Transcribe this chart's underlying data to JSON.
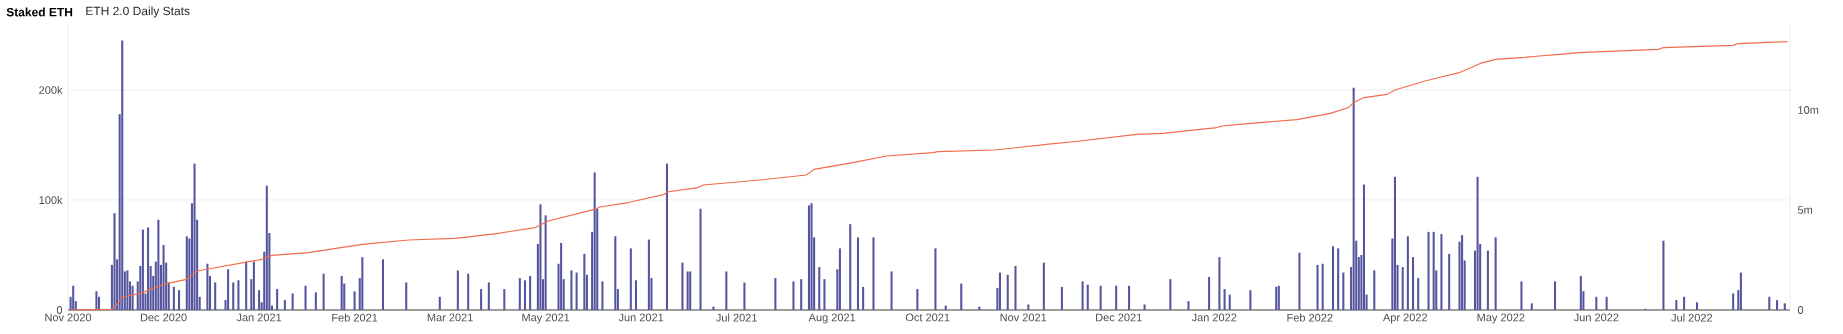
{
  "chart_data": {
    "type": "bar",
    "title": "Staked ETH",
    "subtitle": "ETH 2.0 Daily Stats",
    "xlim": [
      "2020-11-02",
      "2022-08-31"
    ],
    "xticks": [
      {
        "value": "2020-11-02",
        "label": "Nov 2020"
      },
      {
        "value": "2020-12-09",
        "label": "Dec 2020"
      },
      {
        "value": "2021-01-15",
        "label": "Jan 2021"
      },
      {
        "value": "2021-02-21",
        "label": "Feb 2021"
      },
      {
        "value": "2021-03-30",
        "label": "Mar 2021"
      },
      {
        "value": "2021-05-06",
        "label": "May 2021"
      },
      {
        "value": "2021-06-12",
        "label": "Jun 2021"
      },
      {
        "value": "2021-07-19",
        "label": "Jul 2021"
      },
      {
        "value": "2021-08-25",
        "label": "Aug 2021"
      },
      {
        "value": "2021-10-01",
        "label": "Oct 2021"
      },
      {
        "value": "2021-11-07",
        "label": "Nov 2021"
      },
      {
        "value": "2021-12-14",
        "label": "Dec 2021"
      },
      {
        "value": "2022-01-20",
        "label": "Jan 2022"
      },
      {
        "value": "2022-02-26",
        "label": "Feb 2022"
      },
      {
        "value": "2022-04-04",
        "label": "Apr 2022"
      },
      {
        "value": "2022-05-11",
        "label": "May 2022"
      },
      {
        "value": "2022-06-17",
        "label": "Jun 2022"
      },
      {
        "value": "2022-07-24",
        "label": "Jul 2022"
      }
    ],
    "ylim": [
      0,
      259000
    ],
    "yticks": [
      0,
      {
        "value": 100000,
        "label": "100k"
      },
      {
        "value": 200000,
        "label": "200k"
      }
    ],
    "y2lim": [
      0,
      14250000
    ],
    "y2ticks": [
      0,
      {
        "value": 5000000,
        "label": "5m"
      },
      {
        "value": 10000000,
        "label": "10m"
      }
    ],
    "grid": "y",
    "series": [
      {
        "color": "#55559f",
        "x": [
          "2020-11-03",
          "2020-11-04",
          "2020-11-05",
          "2020-11-13",
          "2020-11-14",
          "2020-11-19",
          "2020-11-20",
          "2020-11-21",
          "2020-11-22",
          "2020-11-23",
          "2020-11-24",
          "2020-11-25",
          "2020-11-26",
          "2020-11-27",
          "2020-11-29",
          "2020-11-30",
          "2020-12-01",
          "2020-12-02",
          "2020-12-03",
          "2020-12-04",
          "2020-12-05",
          "2020-12-06",
          "2020-12-07",
          "2020-12-08",
          "2020-12-09",
          "2020-12-10",
          "2020-12-11",
          "2020-12-13",
          "2020-12-15",
          "2020-12-18",
          "2020-12-19",
          "2020-12-20",
          "2020-12-21",
          "2020-12-22",
          "2020-12-23",
          "2020-12-26",
          "2020-12-27",
          "2020-12-29",
          "2021-01-02",
          "2021-01-03",
          "2021-01-05",
          "2021-01-07",
          "2021-01-10",
          "2021-01-12",
          "2021-01-13",
          "2021-01-15",
          "2021-01-16",
          "2021-01-17",
          "2021-01-18",
          "2021-01-19",
          "2021-01-20",
          "2021-01-22",
          "2021-01-25",
          "2021-01-28",
          "2021-02-02",
          "2021-02-06",
          "2021-02-09",
          "2021-02-16",
          "2021-02-17",
          "2021-02-21",
          "2021-02-23",
          "2021-02-24",
          "2021-03-04",
          "2021-03-13",
          "2021-03-26",
          "2021-04-02",
          "2021-04-06",
          "2021-04-11",
          "2021-04-14",
          "2021-04-20",
          "2021-04-26",
          "2021-04-28",
          "2021-04-30",
          "2021-05-03",
          "2021-05-04",
          "2021-05-05",
          "2021-05-06",
          "2021-05-11",
          "2021-05-12",
          "2021-05-13",
          "2021-05-16",
          "2021-05-18",
          "2021-05-21",
          "2021-05-22",
          "2021-05-24",
          "2021-05-25",
          "2021-05-26",
          "2021-05-28",
          "2021-06-02",
          "2021-06-03",
          "2021-06-08",
          "2021-06-10",
          "2021-06-15",
          "2021-06-16",
          "2021-06-22",
          "2021-06-28",
          "2021-06-30",
          "2021-07-01",
          "2021-07-05",
          "2021-07-10",
          "2021-07-15",
          "2021-07-22",
          "2021-08-03",
          "2021-08-10",
          "2021-08-13",
          "2021-08-16",
          "2021-08-17",
          "2021-08-18",
          "2021-08-20",
          "2021-08-22",
          "2021-08-27",
          "2021-08-28",
          "2021-09-01",
          "2021-09-04",
          "2021-09-06",
          "2021-09-10",
          "2021-09-17",
          "2021-09-27",
          "2021-10-04",
          "2021-10-08",
          "2021-10-14",
          "2021-10-21",
          "2021-10-28",
          "2021-10-29",
          "2021-11-01",
          "2021-11-04",
          "2021-11-09",
          "2021-11-15",
          "2021-11-22",
          "2021-11-30",
          "2021-12-02",
          "2021-12-07",
          "2021-12-13",
          "2021-12-18",
          "2021-12-24",
          "2022-01-03",
          "2022-01-10",
          "2022-01-18",
          "2022-01-22",
          "2022-01-24",
          "2022-01-26",
          "2022-02-03",
          "2022-02-13",
          "2022-02-14",
          "2022-02-22",
          "2022-03-01",
          "2022-03-03",
          "2022-03-07",
          "2022-03-09",
          "2022-03-11",
          "2022-03-14",
          "2022-03-15",
          "2022-03-16",
          "2022-03-17",
          "2022-03-18",
          "2022-03-19",
          "2022-03-20",
          "2022-03-23",
          "2022-03-30",
          "2022-03-31",
          "2022-04-01",
          "2022-04-03",
          "2022-04-05",
          "2022-04-07",
          "2022-04-09",
          "2022-04-13",
          "2022-04-15",
          "2022-04-16",
          "2022-04-18",
          "2022-04-21",
          "2022-04-25",
          "2022-04-26",
          "2022-04-27",
          "2022-05-01",
          "2022-05-02",
          "2022-05-03",
          "2022-05-06",
          "2022-05-09",
          "2022-05-19",
          "2022-05-23",
          "2022-06-01",
          "2022-06-11",
          "2022-06-12",
          "2022-06-17",
          "2022-06-21",
          "2022-07-06",
          "2022-07-13",
          "2022-07-18",
          "2022-07-21",
          "2022-07-26",
          "2022-08-09",
          "2022-08-11",
          "2022-08-12",
          "2022-08-23",
          "2022-08-26",
          "2022-08-29"
        ],
        "values": [
          12000,
          22000,
          8000,
          17000,
          12000,
          41000,
          88000,
          46000,
          178000,
          245000,
          35000,
          36000,
          26000,
          22000,
          26000,
          40000,
          73000,
          15000,
          75000,
          40000,
          31000,
          44000,
          82000,
          41000,
          59000,
          43000,
          25000,
          21000,
          18000,
          67000,
          65000,
          97000,
          133000,
          82000,
          12000,
          42000,
          31000,
          25000,
          9000,
          37000,
          25000,
          27000,
          44000,
          28000,
          44000,
          18000,
          7000,
          53000,
          113000,
          70000,
          4000,
          19000,
          9000,
          15000,
          22000,
          16000,
          33000,
          31000,
          24000,
          17000,
          29000,
          48000,
          46000,
          25000,
          12000,
          36000,
          33000,
          19000,
          25000,
          19000,
          29000,
          27000,
          31000,
          60000,
          96000,
          28000,
          86000,
          42000,
          61000,
          28000,
          36000,
          34000,
          51000,
          32000,
          71000,
          125000,
          92000,
          26000,
          67000,
          19000,
          56000,
          27000,
          64000,
          29000,
          133000,
          43000,
          35000,
          35000,
          92000,
          3000,
          35000,
          25000,
          29000,
          26000,
          28000,
          95000,
          97000,
          66000,
          39000,
          28000,
          37000,
          56000,
          78000,
          66000,
          21000,
          66000,
          35000,
          19000,
          56000,
          4000,
          24000,
          3000,
          20000,
          34000,
          32000,
          40000,
          5000,
          43000,
          21000,
          26000,
          23000,
          22000,
          22000,
          22000,
          5000,
          28000,
          8000,
          30000,
          48000,
          19000,
          14000,
          18000,
          21000,
          22000,
          52000,
          41000,
          42000,
          58000,
          56000,
          34000,
          39000,
          202000,
          63000,
          48000,
          50000,
          114000,
          14000,
          36000,
          65000,
          121000,
          41000,
          39000,
          67000,
          48000,
          29000,
          71000,
          71000,
          36000,
          69000,
          51000,
          62000,
          68000,
          45000,
          54000,
          121000,
          60000,
          54000,
          66000,
          26000,
          6000,
          26000,
          31000,
          17000,
          12000,
          12000,
          1000,
          63000,
          9000,
          12000,
          7000,
          15000,
          18000,
          34000,
          12000,
          9000,
          6000
        ]
      },
      {
        "type": "line",
        "axis": "y2",
        "color": "#f26b4a",
        "x": [
          "2020-11-03",
          "2020-11-19",
          "2020-11-21",
          "2020-11-23",
          "2020-11-30",
          "2020-12-10",
          "2020-12-18",
          "2020-12-22",
          "2021-01-16",
          "2021-01-20",
          "2021-02-03",
          "2021-02-24",
          "2021-03-14",
          "2021-04-01",
          "2021-04-17",
          "2021-05-02",
          "2021-05-07",
          "2021-05-25",
          "2021-05-27",
          "2021-06-07",
          "2021-06-21",
          "2021-06-22",
          "2021-07-04",
          "2021-07-06",
          "2021-07-28",
          "2021-08-15",
          "2021-08-18",
          "2021-09-02",
          "2021-09-15",
          "2021-10-03",
          "2021-10-05",
          "2021-10-27",
          "2021-11-16",
          "2021-11-29",
          "2021-12-21",
          "2021-12-31",
          "2022-01-21",
          "2022-01-23",
          "2022-02-02",
          "2022-02-21",
          "2022-03-06",
          "2022-03-13",
          "2022-03-15",
          "2022-03-19",
          "2022-03-28",
          "2022-03-31",
          "2022-04-11",
          "2022-04-17",
          "2022-04-25",
          "2022-04-30",
          "2022-05-03",
          "2022-05-09",
          "2022-05-19",
          "2022-05-26",
          "2022-06-03",
          "2022-06-10",
          "2022-07-11",
          "2022-07-13",
          "2022-08-09",
          "2022-08-11",
          "2022-08-30"
        ],
        "values": [
          0,
          30000,
          280000,
          650000,
          830000,
          1320000,
          1530000,
          1950000,
          2530000,
          2730000,
          2870000,
          3280000,
          3500000,
          3580000,
          3820000,
          4120000,
          4450000,
          5030000,
          5150000,
          5370000,
          5780000,
          5900000,
          6120000,
          6250000,
          6500000,
          6750000,
          7030000,
          7370000,
          7700000,
          7870000,
          7920000,
          8000000,
          8280000,
          8450000,
          8780000,
          8830000,
          9120000,
          9200000,
          9320000,
          9520000,
          9830000,
          10120000,
          10370000,
          10620000,
          10780000,
          11000000,
          11420000,
          11620000,
          11870000,
          12150000,
          12330000,
          12530000,
          12620000,
          12700000,
          12780000,
          12870000,
          13030000,
          13120000,
          13230000,
          13320000,
          13420000
        ]
      }
    ]
  }
}
